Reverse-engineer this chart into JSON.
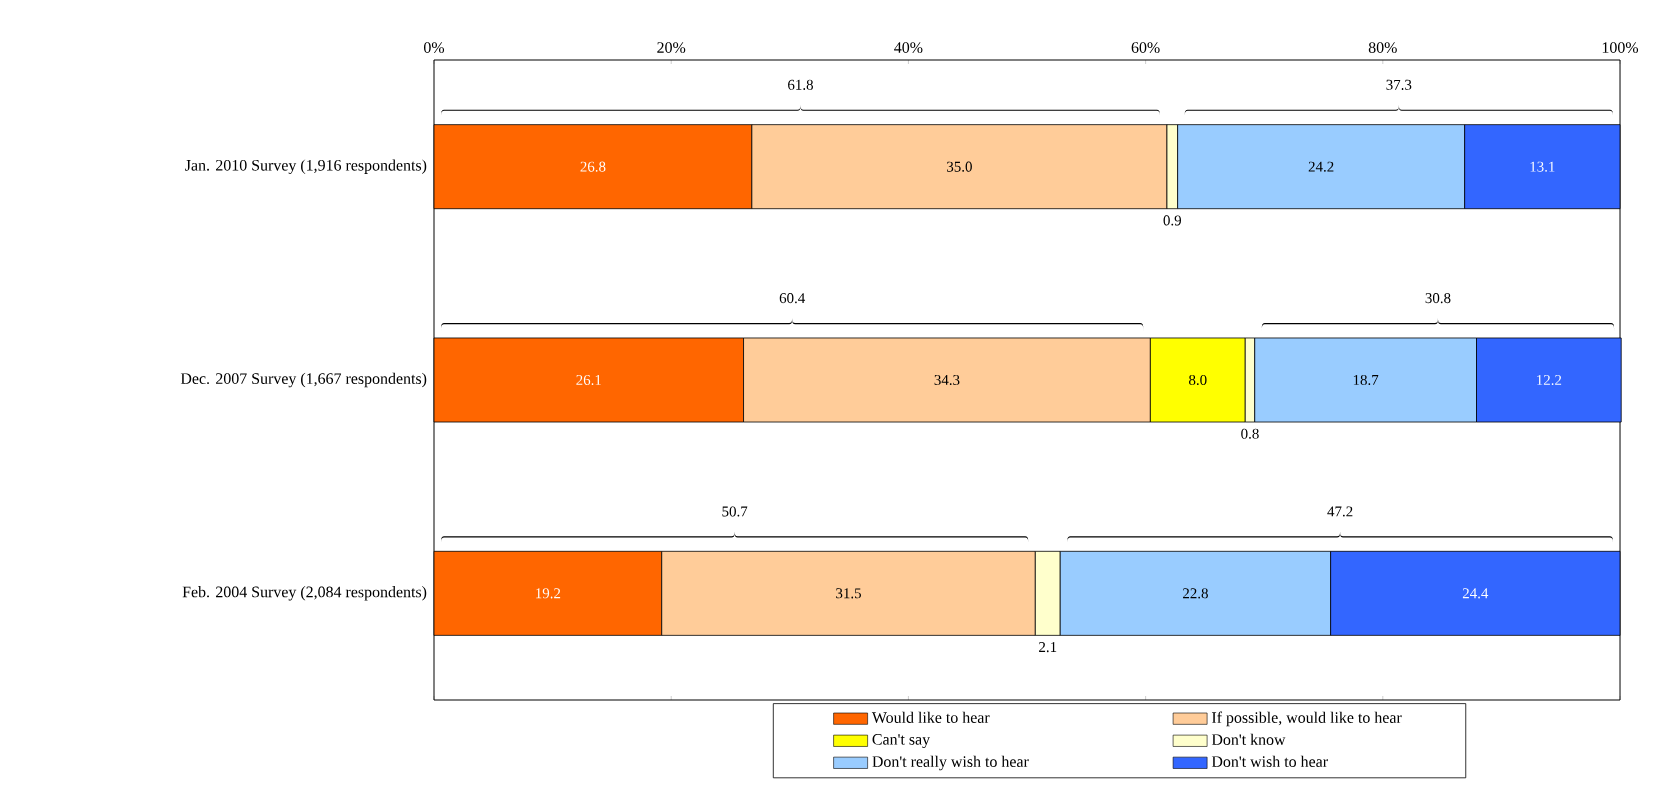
{
  "chart_data": {
    "type": "bar",
    "orientation": "horizontal",
    "stacked": true,
    "categories": [
      "Jan. 2010 Survey  (1,916 respondents)",
      "Dec. 2007 Survey (1,667 respondents)",
      "Feb. 2004 Survey (2,084 respondents)"
    ],
    "series": [
      {
        "name": "Would like to hear",
        "color": "#ff6600",
        "values": [
          26.8,
          26.1,
          19.2
        ],
        "value_labels": [
          "26.8",
          "26.1",
          "19.2"
        ]
      },
      {
        "name": "If possible, would like to hear",
        "color": "#ffcc99",
        "values": [
          35.0,
          34.3,
          31.5
        ],
        "value_labels": [
          "35.0",
          "34.3",
          "31.5"
        ]
      },
      {
        "name": "Can't say",
        "color": "#ffff00",
        "values": [
          null,
          8.0,
          null
        ],
        "value_labels": [
          null,
          "8.0",
          null
        ]
      },
      {
        "name": "Don't know",
        "color": "#ffffcc",
        "values": [
          0.9,
          0.8,
          2.1
        ],
        "value_labels": [
          "0.9",
          "0.8",
          "2.1"
        ]
      },
      {
        "name": "Don't really wish to hear",
        "color": "#99ccff",
        "values": [
          24.2,
          18.7,
          22.8
        ],
        "value_labels": [
          "24.2",
          "18.7",
          "22.8"
        ]
      },
      {
        "name": "Don't wish to hear",
        "color": "#3366ff",
        "values": [
          13.1,
          12.2,
          24.4
        ],
        "value_labels": [
          "13.1",
          "12.2",
          "24.4"
        ]
      }
    ],
    "xlim": [
      0,
      100
    ],
    "xticks": [
      {
        "value": 0,
        "label": "0%"
      },
      {
        "value": 20,
        "label": "20%"
      },
      {
        "value": 40,
        "label": "40%"
      },
      {
        "value": 60,
        "label": "60%"
      },
      {
        "value": 80,
        "label": "80%"
      },
      {
        "value": 100,
        "label": "100%"
      }
    ],
    "annotations": [
      "61.8",
      "37.3",
      "60.4",
      "30.8",
      "50.7",
      "47.2"
    ],
    "legend": "bottom"
  }
}
